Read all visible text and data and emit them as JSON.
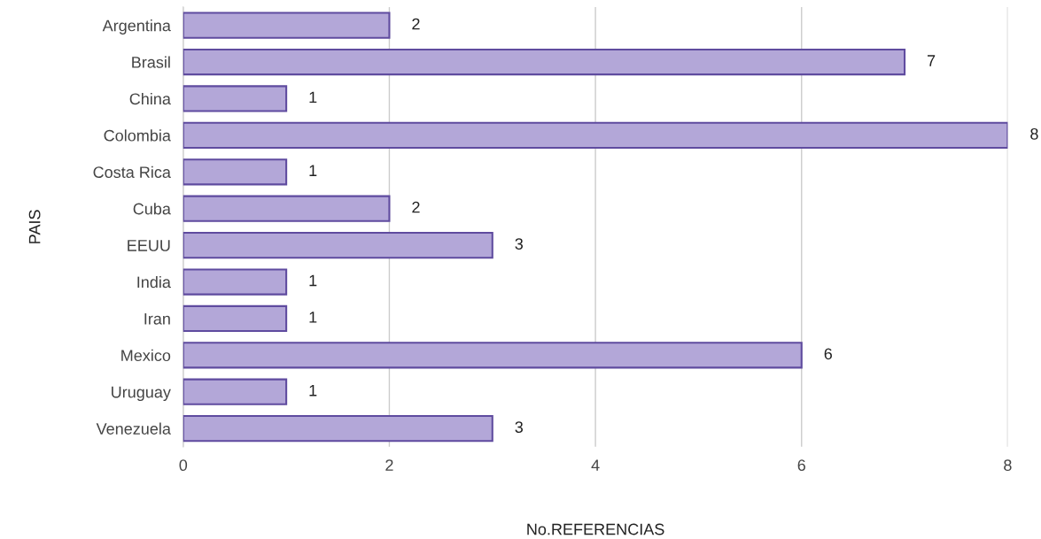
{
  "chart_data": {
    "type": "bar",
    "orientation": "horizontal",
    "categories": [
      "Argentina",
      "Brasil",
      "China",
      "Colombia",
      "Costa Rica",
      "Cuba",
      "EEUU",
      "India",
      "Iran",
      "Mexico",
      "Uruguay",
      "Venezuela"
    ],
    "values": [
      2,
      7,
      1,
      8,
      1,
      2,
      3,
      1,
      1,
      6,
      1,
      3
    ],
    "color": "#b3a7d8",
    "xlim": [
      0,
      8
    ],
    "xticks": [
      0,
      2,
      4,
      6,
      8
    ],
    "xlabel": "No.REFERENCIAS",
    "ylabel": "PAIS",
    "grid": "x",
    "data_labels": true
  }
}
